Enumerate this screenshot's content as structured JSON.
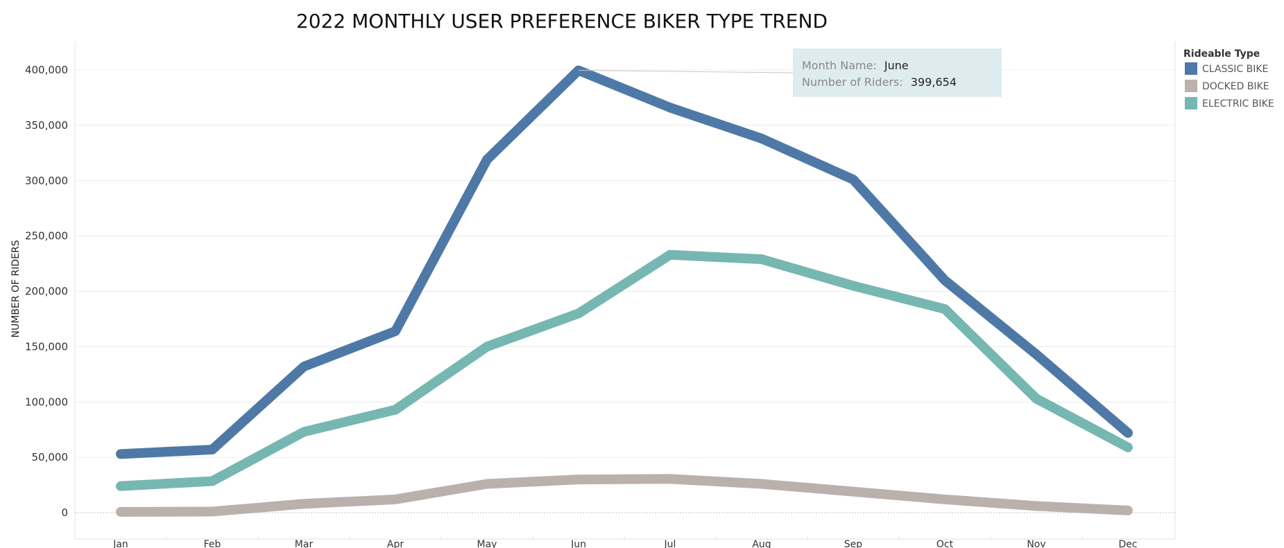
{
  "chart_data": {
    "type": "line",
    "title": "2022 MONTHLY USER PREFERENCE BIKER TYPE TREND",
    "xlabel": "",
    "ylabel": "NUMBER OF RIDERS",
    "categories": [
      "Jan",
      "Feb",
      "Mar",
      "Apr",
      "May",
      "Jun",
      "Jul",
      "Aug",
      "Sep",
      "Oct",
      "Nov",
      "Dec"
    ],
    "ylim": [
      0,
      400000
    ],
    "yticks": [
      0,
      50000,
      100000,
      150000,
      200000,
      250000,
      300000,
      350000,
      400000
    ],
    "ytick_labels": [
      "0",
      "50,000",
      "100,000",
      "150,000",
      "200,000",
      "250,000",
      "300,000",
      "350,000",
      "400,000"
    ],
    "grid": true,
    "legend": {
      "title": "Rideable Type",
      "placement": "top-right"
    },
    "series": [
      {
        "name": "CLASSIC BIKE",
        "color": "#4e79a7",
        "values": [
          53000,
          57000,
          132000,
          164000,
          319000,
          399654,
          366000,
          338000,
          301000,
          210000,
          143000,
          72000
        ]
      },
      {
        "name": "DOCKED BIKE",
        "color": "#bab0ac",
        "values": [
          700,
          1000,
          8000,
          12000,
          26000,
          30000,
          30500,
          26000,
          19000,
          12000,
          6000,
          2000
        ]
      },
      {
        "name": "ELECTRIC BIKE",
        "color": "#76b7b2",
        "values": [
          24000,
          28500,
          73000,
          93000,
          150000,
          180000,
          233000,
          229000,
          205000,
          184000,
          103000,
          59000
        ]
      }
    ],
    "tooltip": {
      "series": "CLASSIC BIKE",
      "category": "Jun",
      "line1_label": "Month Name:",
      "line1_value": "June",
      "line2_label": "Number of Riders:",
      "line2_value": "399,654",
      "background": "#dfecef"
    }
  }
}
